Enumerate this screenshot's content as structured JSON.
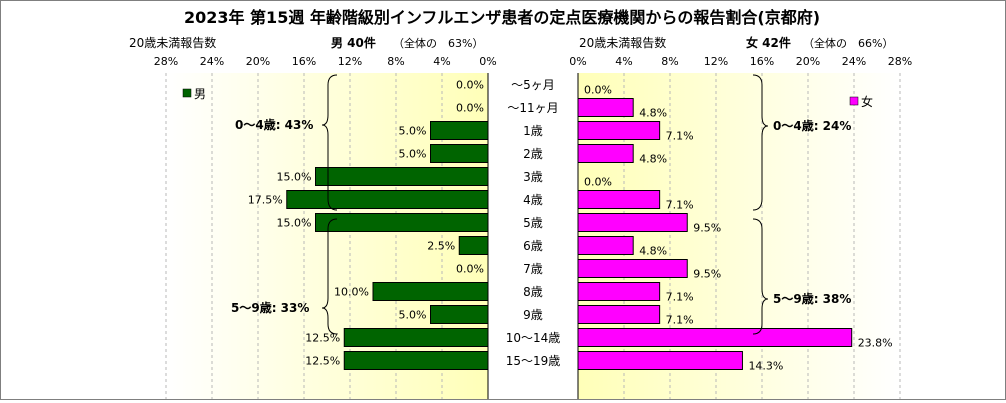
{
  "chart_data": {
    "type": "bar",
    "title": "2023年 第15週 年齢階級別インフルエンザ患者の定点医療機関からの報告割合(京都府)",
    "categories": [
      "～5ヶ月",
      "～11ヶ月",
      "1歳",
      "2歳",
      "3歳",
      "4歳",
      "5歳",
      "6歳",
      "7歳",
      "8歳",
      "9歳",
      "10～14歳",
      "15～19歳"
    ],
    "x_ticks": [
      "28%",
      "24%",
      "20%",
      "16%",
      "12%",
      "8%",
      "4%",
      "0%"
    ],
    "x_ticks_right": [
      "0%",
      "4%",
      "8%",
      "12%",
      "16%",
      "20%",
      "24%",
      "28%"
    ],
    "xlim": [
      0,
      28
    ],
    "grid": true,
    "male": {
      "legend": "男",
      "sublabel": "20歳未満報告数",
      "count_label": "男 40件",
      "share_label": "（全体の　63%）",
      "color": "#006400",
      "values": [
        0.0,
        0.0,
        5.0,
        5.0,
        15.0,
        17.5,
        15.0,
        2.5,
        0.0,
        10.0,
        5.0,
        12.5,
        12.5
      ],
      "value_labels": [
        "0.0%",
        "0.0%",
        "5.0%",
        "5.0%",
        "15.0%",
        "17.5%",
        "15.0%",
        "2.5%",
        "0.0%",
        "10.0%",
        "5.0%",
        "12.5%",
        "12.5%"
      ],
      "group_04": "0～4歳: 43%",
      "group_59": "5～9歳: 33%"
    },
    "female": {
      "legend": "女",
      "sublabel": "20歳未満報告数",
      "count_label": "女 42件",
      "share_label": "（全体の　66%）",
      "color": "#ff00ff",
      "values": [
        0.0,
        4.8,
        7.1,
        4.8,
        0.0,
        7.1,
        9.5,
        4.8,
        9.5,
        7.1,
        7.1,
        23.8,
        14.3
      ],
      "value_labels": [
        "0.0%",
        "4.8%",
        "7.1%",
        "4.8%",
        "0.0%",
        "7.1%",
        "9.5%",
        "4.8%",
        "9.5%",
        "7.1%",
        "7.1%",
        "23.8%",
        "14.3%"
      ],
      "group_04": "0～4歳: 24%",
      "group_59": "5～9歳: 38%"
    }
  }
}
